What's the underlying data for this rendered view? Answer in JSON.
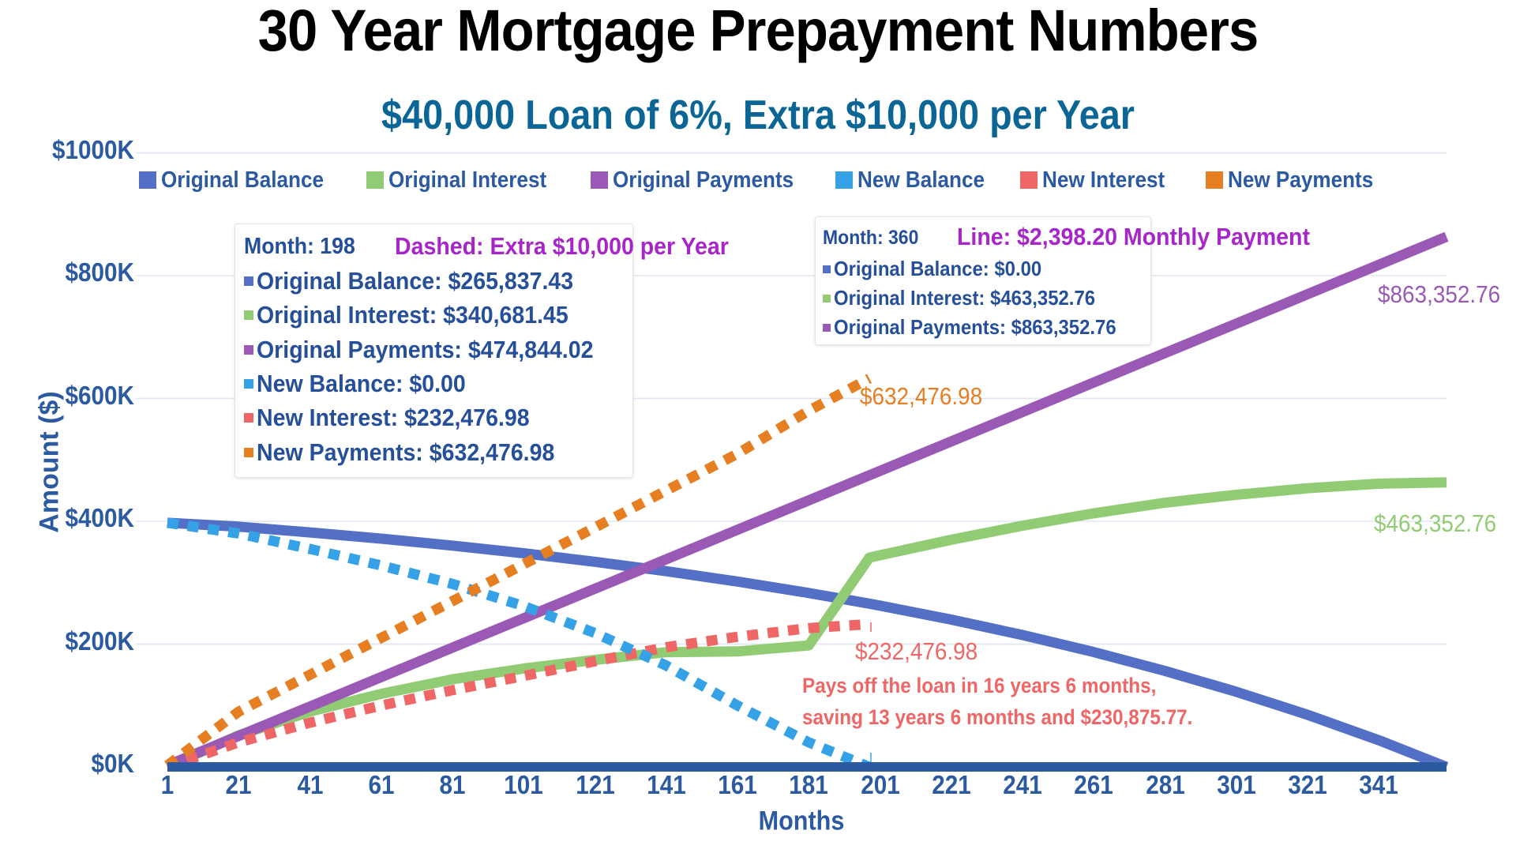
{
  "header": {
    "title": "30 Year Mortgage Prepayment Numbers",
    "subtitle": "$40,000 Loan of 6%, Extra $10,000 per Year"
  },
  "colors": {
    "original_balance": "#5470c6",
    "original_interest": "#91cc75",
    "original_payments": "#9a59b5",
    "new_balance": "#35a2e8",
    "new_interest": "#ee6666",
    "new_payments": "#e67e22",
    "axis": "#2b5aa0",
    "grid": "#e0e6f1",
    "subtitle": "#0b6696",
    "annotation_purple": "#a626c8"
  },
  "legend": [
    {
      "label": "Original Balance",
      "color_key": "original_balance"
    },
    {
      "label": "Original Interest",
      "color_key": "original_interest"
    },
    {
      "label": "Original Payments",
      "color_key": "original_payments"
    },
    {
      "label": "New Balance",
      "color_key": "new_balance"
    },
    {
      "label": "New Interest",
      "color_key": "new_interest"
    },
    {
      "label": "New Payments",
      "color_key": "new_payments"
    }
  ],
  "tooltip_new": {
    "month_label": "Month: 198",
    "note": "Dashed: Extra $10,000 per Year",
    "rows": [
      {
        "label": "Original Balance: $265,837.43"
      },
      {
        "label": "Original Interest: $340,681.45"
      },
      {
        "label": "Original Payments: $474,844.02"
      },
      {
        "label": "New Balance: $0.00"
      },
      {
        "label": "New Interest: $232,476.98"
      },
      {
        "label": "New Payments: $632,476.98"
      }
    ]
  },
  "tooltip_original": {
    "month_label": "Month: 360",
    "note": "Line: $2,398.20 Monthly Payment",
    "rows": [
      {
        "label": "Original Balance: $0.00"
      },
      {
        "label": "Original Interest: $463,352.76"
      },
      {
        "label": "Original Payments: $863,352.76"
      }
    ]
  },
  "end_labels": {
    "original_payments": "$863,352.76",
    "original_interest": "$463,352.76",
    "new_payments": "$632,476.98",
    "new_interest": "$232,476.98"
  },
  "annotation": {
    "line1": "Pays off the loan in 16 years 6 months,",
    "line2": "saving 13 years 6 months and $230,875.77."
  },
  "axes": {
    "xlabel": "Months",
    "ylabel": "Amount ($)",
    "yticks": [
      "$0K",
      "$200K",
      "$400K",
      "$600K",
      "$800K",
      "$1000K"
    ],
    "xticks": [
      "1",
      "21",
      "41",
      "61",
      "81",
      "101",
      "121",
      "141",
      "161",
      "181",
      "201",
      "221",
      "241",
      "261",
      "281",
      "301",
      "321",
      "341"
    ]
  },
  "chart_data": {
    "type": "line",
    "title": "30 Year Mortgage Prepayment Numbers",
    "subtitle": "$40,000 Loan of 6%, Extra $10,000 per Year",
    "xlabel": "Months",
    "ylabel": "Amount ($)",
    "ylim": [
      0,
      1000000
    ],
    "xlim": [
      1,
      360
    ],
    "grid": true,
    "legend_position": "top",
    "x": [
      1,
      21,
      41,
      61,
      81,
      101,
      121,
      141,
      161,
      181,
      198,
      201,
      221,
      241,
      261,
      281,
      301,
      321,
      341,
      360
    ],
    "series": [
      {
        "name": "Original Balance",
        "style": "solid",
        "values": [
          397602,
          391206,
          381922,
          371683,
          360360,
          347862,
          334039,
          318767,
          301899,
          283262,
          265837,
          262669,
          239909,
          214768,
          186992,
          156294,
          122374,
          84905,
          43503,
          0
        ]
      },
      {
        "name": "Original Interest",
        "style": "solid",
        "values": [
          0,
          51568,
          90210,
          118969,
          142617,
          160089,
          174241,
          186915,
          188021,
          197950,
          340681,
          344731,
          369910,
          392745,
          412940,
          430190,
          443230,
          453742,
          461219,
          463353
        ]
      },
      {
        "name": "Original Payments",
        "style": "solid",
        "values": [
          2398,
          50362,
          98326,
          146290,
          194254,
          242218,
          290182,
          338146,
          386110,
          434074,
          474844,
          482038,
          530002,
          577966,
          625930,
          673894,
          721858,
          769822,
          817786,
          863353
        ]
      },
      {
        "name": "New Balance",
        "style": "dashed",
        "values": [
          397602,
          380000,
          355000,
          328000,
          298000,
          262000,
          218000,
          165000,
          100000,
          40000,
          0,
          null,
          null,
          null,
          null,
          null,
          null,
          null,
          null,
          null
        ]
      },
      {
        "name": "New Interest",
        "style": "dashed",
        "values": [
          0,
          40000,
          72000,
          100000,
          125000,
          148000,
          172000,
          195000,
          212000,
          226000,
          232477,
          null,
          null,
          null,
          null,
          null,
          null,
          null,
          null,
          null
        ]
      },
      {
        "name": "New Payments",
        "style": "dashed",
        "values": [
          2398,
          90000,
          150000,
          210000,
          270000,
          330000,
          390000,
          450000,
          510000,
          580000,
          632477,
          null,
          null,
          null,
          null,
          null,
          null,
          null,
          null,
          null
        ]
      }
    ],
    "annotations": [
      "Month: 198 Dashed: Extra $10,000 per Year",
      "Month: 360 Line: $2,398.20 Monthly Payment",
      "Pays off the loan in 16 years 6 months, saving 13 years 6 months and $230,875.77."
    ]
  }
}
